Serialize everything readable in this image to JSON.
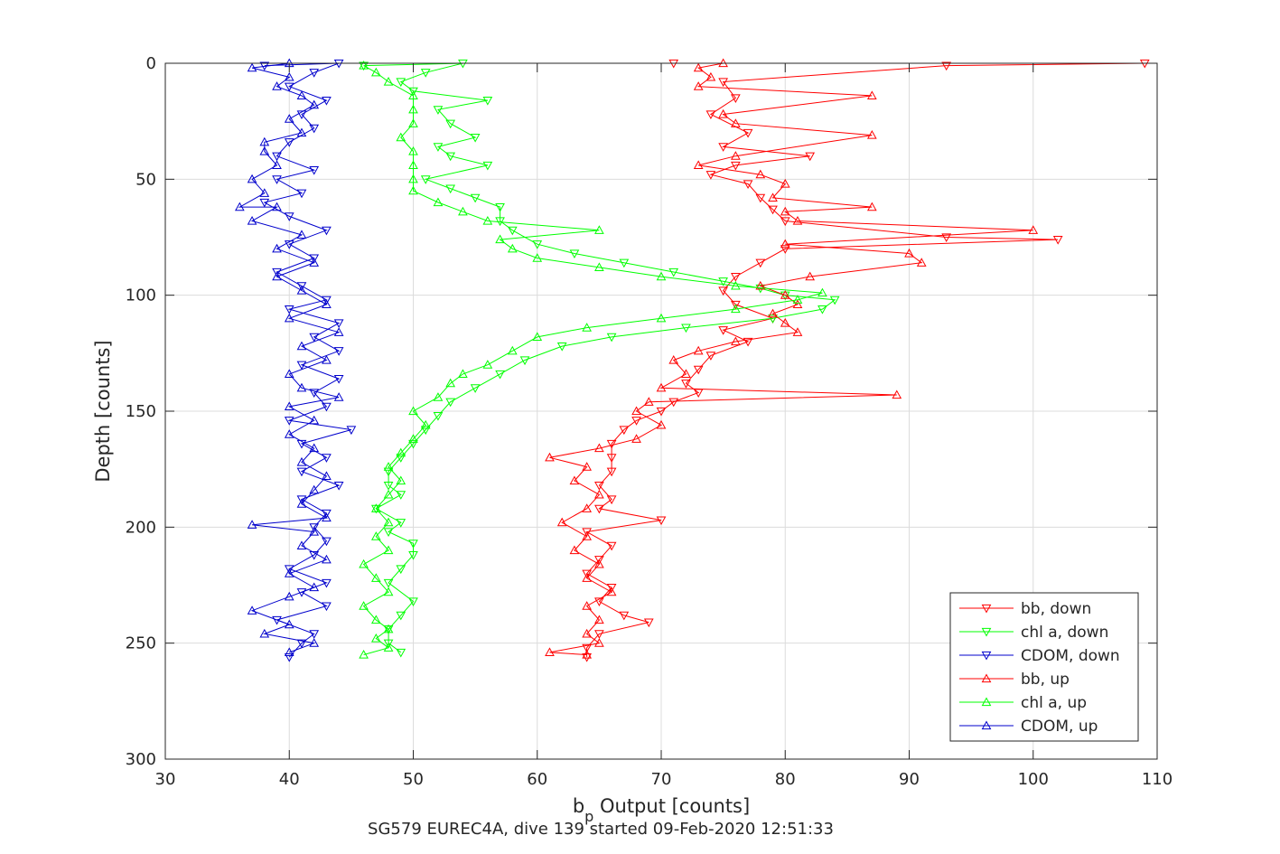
{
  "chart_data": {
    "type": "line",
    "title": "",
    "xlabel_main": "b",
    "xlabel_sub": "p",
    "xlabel_rest": " Output [counts]",
    "ylabel": "Depth [counts]",
    "caption": "SG579 EUREC4A, dive 139 started 09-Feb-2020 12:51:33",
    "xlim": [
      30,
      110
    ],
    "ylim": [
      0,
      300
    ],
    "y_reversed": true,
    "grid": true,
    "legend_position": "lower-right",
    "xticks": [
      30,
      40,
      50,
      60,
      70,
      80,
      90,
      100,
      110
    ],
    "yticks": [
      0,
      50,
      100,
      150,
      200,
      250,
      300
    ],
    "series": [
      {
        "name": "bb, down",
        "color": "#ff0000",
        "marker": "triangle-down",
        "points": [
          [
            71,
            0
          ],
          [
            109,
            0
          ],
          [
            93,
            1
          ],
          [
            75,
            8
          ],
          [
            76,
            15
          ],
          [
            74,
            22
          ],
          [
            77,
            30
          ],
          [
            75,
            36
          ],
          [
            82,
            40
          ],
          [
            76,
            44
          ],
          [
            74,
            48
          ],
          [
            77,
            52
          ],
          [
            78,
            58
          ],
          [
            79,
            63
          ],
          [
            80,
            68
          ],
          [
            93,
            75
          ],
          [
            102,
            76
          ],
          [
            80,
            80
          ],
          [
            78,
            86
          ],
          [
            76,
            92
          ],
          [
            75,
            98
          ],
          [
            76,
            104
          ],
          [
            79,
            110
          ],
          [
            75,
            115
          ],
          [
            77,
            120
          ],
          [
            74,
            126
          ],
          [
            73,
            132
          ],
          [
            72,
            138
          ],
          [
            73,
            142
          ],
          [
            71,
            146
          ],
          [
            70,
            150
          ],
          [
            68,
            154
          ],
          [
            67,
            158
          ],
          [
            66,
            164
          ],
          [
            66,
            170
          ],
          [
            66,
            176
          ],
          [
            65,
            182
          ],
          [
            66,
            188
          ],
          [
            65,
            192
          ],
          [
            70,
            197
          ],
          [
            64,
            202
          ],
          [
            66,
            208
          ],
          [
            65,
            214
          ],
          [
            64,
            220
          ],
          [
            66,
            226
          ],
          [
            65,
            232
          ],
          [
            67,
            238
          ],
          [
            69,
            241
          ],
          [
            65,
            246
          ],
          [
            64,
            252
          ],
          [
            64,
            256
          ]
        ]
      },
      {
        "name": "chl a, down",
        "color": "#00ff00",
        "marker": "triangle-down",
        "points": [
          [
            46,
            1
          ],
          [
            54,
            0
          ],
          [
            51,
            4
          ],
          [
            49,
            8
          ],
          [
            50,
            12
          ],
          [
            56,
            16
          ],
          [
            52,
            20
          ],
          [
            53,
            26
          ],
          [
            55,
            32
          ],
          [
            52,
            36
          ],
          [
            53,
            40
          ],
          [
            56,
            44
          ],
          [
            51,
            50
          ],
          [
            53,
            54
          ],
          [
            55,
            58
          ],
          [
            57,
            62
          ],
          [
            57,
            68
          ],
          [
            58,
            72
          ],
          [
            60,
            78
          ],
          [
            63,
            82
          ],
          [
            67,
            86
          ],
          [
            71,
            90
          ],
          [
            75,
            94
          ],
          [
            78,
            97
          ],
          [
            80,
            100
          ],
          [
            84,
            102
          ],
          [
            83,
            106
          ],
          [
            79,
            110
          ],
          [
            72,
            114
          ],
          [
            66,
            118
          ],
          [
            62,
            122
          ],
          [
            59,
            128
          ],
          [
            57,
            134
          ],
          [
            55,
            140
          ],
          [
            53,
            146
          ],
          [
            52,
            152
          ],
          [
            51,
            158
          ],
          [
            50,
            164
          ],
          [
            49,
            170
          ],
          [
            48,
            176
          ],
          [
            48,
            182
          ],
          [
            49,
            186
          ],
          [
            47,
            192
          ],
          [
            49,
            198
          ],
          [
            48,
            202
          ],
          [
            50,
            207
          ],
          [
            50,
            212
          ],
          [
            49,
            218
          ],
          [
            48,
            224
          ],
          [
            50,
            232
          ],
          [
            49,
            238
          ],
          [
            48,
            244
          ],
          [
            48,
            250
          ],
          [
            49,
            254
          ]
        ]
      },
      {
        "name": "CDOM, down",
        "color": "#0000cc",
        "marker": "triangle-down",
        "points": [
          [
            38,
            1
          ],
          [
            44,
            0
          ],
          [
            42,
            4
          ],
          [
            40,
            10
          ],
          [
            43,
            16
          ],
          [
            41,
            22
          ],
          [
            42,
            28
          ],
          [
            40,
            34
          ],
          [
            39,
            40
          ],
          [
            42,
            46
          ],
          [
            39,
            50
          ],
          [
            41,
            56
          ],
          [
            38,
            60
          ],
          [
            40,
            66
          ],
          [
            43,
            72
          ],
          [
            40,
            78
          ],
          [
            42,
            84
          ],
          [
            39,
            90
          ],
          [
            41,
            96
          ],
          [
            43,
            102
          ],
          [
            40,
            106
          ],
          [
            44,
            112
          ],
          [
            42,
            118
          ],
          [
            44,
            124
          ],
          [
            41,
            130
          ],
          [
            44,
            136
          ],
          [
            42,
            142
          ],
          [
            43,
            148
          ],
          [
            40,
            154
          ],
          [
            45,
            158
          ],
          [
            41,
            164
          ],
          [
            43,
            170
          ],
          [
            41,
            176
          ],
          [
            44,
            182
          ],
          [
            41,
            188
          ],
          [
            43,
            194
          ],
          [
            42,
            200
          ],
          [
            43,
            206
          ],
          [
            42,
            212
          ],
          [
            40,
            218
          ],
          [
            43,
            224
          ],
          [
            41,
            228
          ],
          [
            43,
            234
          ],
          [
            39,
            240
          ],
          [
            42,
            246
          ],
          [
            41,
            250
          ],
          [
            40,
            256
          ]
        ]
      },
      {
        "name": "bb, up",
        "color": "#ff0000",
        "marker": "triangle-up",
        "points": [
          [
            64,
            255
          ],
          [
            61,
            254
          ],
          [
            65,
            250
          ],
          [
            64,
            246
          ],
          [
            65,
            240
          ],
          [
            64,
            234
          ],
          [
            66,
            228
          ],
          [
            64,
            222
          ],
          [
            65,
            216
          ],
          [
            63,
            210
          ],
          [
            64,
            204
          ],
          [
            62,
            198
          ],
          [
            64,
            192
          ],
          [
            65,
            186
          ],
          [
            63,
            180
          ],
          [
            64,
            174
          ],
          [
            61,
            170
          ],
          [
            65,
            166
          ],
          [
            68,
            162
          ],
          [
            70,
            156
          ],
          [
            68,
            150
          ],
          [
            69,
            146
          ],
          [
            89,
            143
          ],
          [
            70,
            140
          ],
          [
            72,
            134
          ],
          [
            71,
            128
          ],
          [
            73,
            124
          ],
          [
            76,
            120
          ],
          [
            81,
            116
          ],
          [
            80,
            112
          ],
          [
            79,
            108
          ],
          [
            81,
            104
          ],
          [
            80,
            100
          ],
          [
            78,
            96
          ],
          [
            82,
            92
          ],
          [
            91,
            86
          ],
          [
            90,
            82
          ],
          [
            80,
            78
          ],
          [
            100,
            72
          ],
          [
            81,
            68
          ],
          [
            80,
            64
          ],
          [
            87,
            62
          ],
          [
            79,
            58
          ],
          [
            80,
            52
          ],
          [
            78,
            48
          ],
          [
            73,
            44
          ],
          [
            76,
            40
          ],
          [
            87,
            31
          ],
          [
            76,
            26
          ],
          [
            75,
            22
          ],
          [
            87,
            14
          ],
          [
            73,
            10
          ],
          [
            74,
            6
          ],
          [
            73,
            2
          ],
          [
            75,
            0
          ]
        ]
      },
      {
        "name": "chl a, up",
        "color": "#00ff00",
        "marker": "triangle-up",
        "points": [
          [
            46,
            255
          ],
          [
            48,
            252
          ],
          [
            47,
            248
          ],
          [
            48,
            244
          ],
          [
            47,
            240
          ],
          [
            46,
            234
          ],
          [
            48,
            228
          ],
          [
            47,
            222
          ],
          [
            46,
            216
          ],
          [
            48,
            210
          ],
          [
            47,
            204
          ],
          [
            48,
            198
          ],
          [
            47,
            192
          ],
          [
            48,
            186
          ],
          [
            49,
            180
          ],
          [
            48,
            174
          ],
          [
            49,
            168
          ],
          [
            50,
            162
          ],
          [
            51,
            156
          ],
          [
            50,
            150
          ],
          [
            52,
            144
          ],
          [
            53,
            138
          ],
          [
            54,
            134
          ],
          [
            56,
            130
          ],
          [
            58,
            124
          ],
          [
            60,
            118
          ],
          [
            64,
            114
          ],
          [
            70,
            110
          ],
          [
            76,
            106
          ],
          [
            81,
            102
          ],
          [
            83,
            99
          ],
          [
            76,
            96
          ],
          [
            70,
            92
          ],
          [
            65,
            88
          ],
          [
            60,
            84
          ],
          [
            58,
            80
          ],
          [
            57,
            76
          ],
          [
            65,
            72
          ],
          [
            56,
            68
          ],
          [
            54,
            64
          ],
          [
            52,
            60
          ],
          [
            50,
            55
          ],
          [
            50,
            50
          ],
          [
            50,
            44
          ],
          [
            50,
            38
          ],
          [
            49,
            32
          ],
          [
            50,
            26
          ],
          [
            50,
            20
          ],
          [
            50,
            14
          ],
          [
            48,
            8
          ],
          [
            47,
            4
          ],
          [
            46,
            1
          ]
        ]
      },
      {
        "name": "CDOM, up",
        "color": "#0000cc",
        "marker": "triangle-up",
        "points": [
          [
            40,
            254
          ],
          [
            42,
            250
          ],
          [
            38,
            246
          ],
          [
            40,
            242
          ],
          [
            37,
            236
          ],
          [
            40,
            230
          ],
          [
            42,
            226
          ],
          [
            40,
            220
          ],
          [
            43,
            214
          ],
          [
            41,
            208
          ],
          [
            42,
            202
          ],
          [
            37,
            199
          ],
          [
            43,
            196
          ],
          [
            41,
            190
          ],
          [
            42,
            184
          ],
          [
            43,
            178
          ],
          [
            41,
            172
          ],
          [
            42,
            166
          ],
          [
            40,
            160
          ],
          [
            42,
            154
          ],
          [
            40,
            148
          ],
          [
            44,
            144
          ],
          [
            41,
            140
          ],
          [
            40,
            134
          ],
          [
            43,
            128
          ],
          [
            41,
            122
          ],
          [
            44,
            116
          ],
          [
            40,
            110
          ],
          [
            43,
            104
          ],
          [
            41,
            98
          ],
          [
            39,
            92
          ],
          [
            42,
            86
          ],
          [
            39,
            80
          ],
          [
            41,
            74
          ],
          [
            37,
            68
          ],
          [
            39,
            62
          ],
          [
            36,
            62
          ],
          [
            38,
            56
          ],
          [
            37,
            50
          ],
          [
            39,
            44
          ],
          [
            38,
            38
          ],
          [
            38,
            34
          ],
          [
            41,
            30
          ],
          [
            40,
            24
          ],
          [
            42,
            18
          ],
          [
            41,
            14
          ],
          [
            39,
            10
          ],
          [
            40,
            6
          ],
          [
            37,
            2
          ],
          [
            40,
            0
          ]
        ]
      }
    ]
  }
}
